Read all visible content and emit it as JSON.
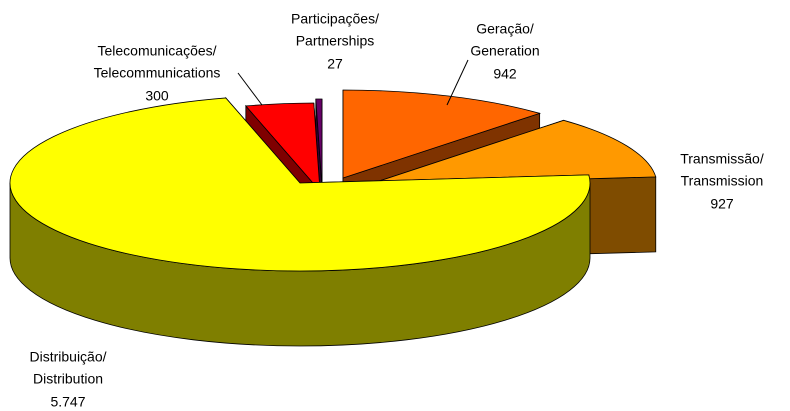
{
  "chart_data": {
    "type": "pie3d",
    "categories": [
      [
        "Geração/",
        "Generation"
      ],
      [
        "Transmissão/",
        "Transmission"
      ],
      [
        "Distribuição/",
        "Distribution"
      ],
      [
        "Telecomunicações/",
        "Telecommunications"
      ],
      [
        "Participações/",
        "Partnerships"
      ]
    ],
    "values": [
      942,
      927,
      5747,
      300,
      27
    ],
    "value_labels": [
      "942",
      "927",
      "5.747",
      "300",
      "27"
    ],
    "colors": [
      "#ff6600",
      "#ff9900",
      "#ffff00",
      "#ff0000",
      "#660066"
    ]
  }
}
